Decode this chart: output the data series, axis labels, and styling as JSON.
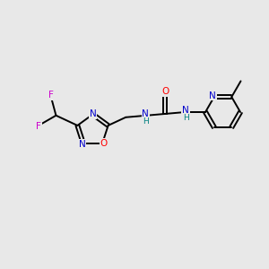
{
  "background_color": "#e8e8e8",
  "bond_color": "#000000",
  "atom_colors": {
    "N": "#0000cc",
    "O": "#ff0000",
    "F": "#cc00cc",
    "C": "#000000",
    "H": "#008080"
  },
  "figsize": [
    3.0,
    3.0
  ],
  "dpi": 100,
  "lw": 1.4,
  "off_double": 0.065,
  "font_size_atom": 7.5,
  "font_size_H": 6.5
}
